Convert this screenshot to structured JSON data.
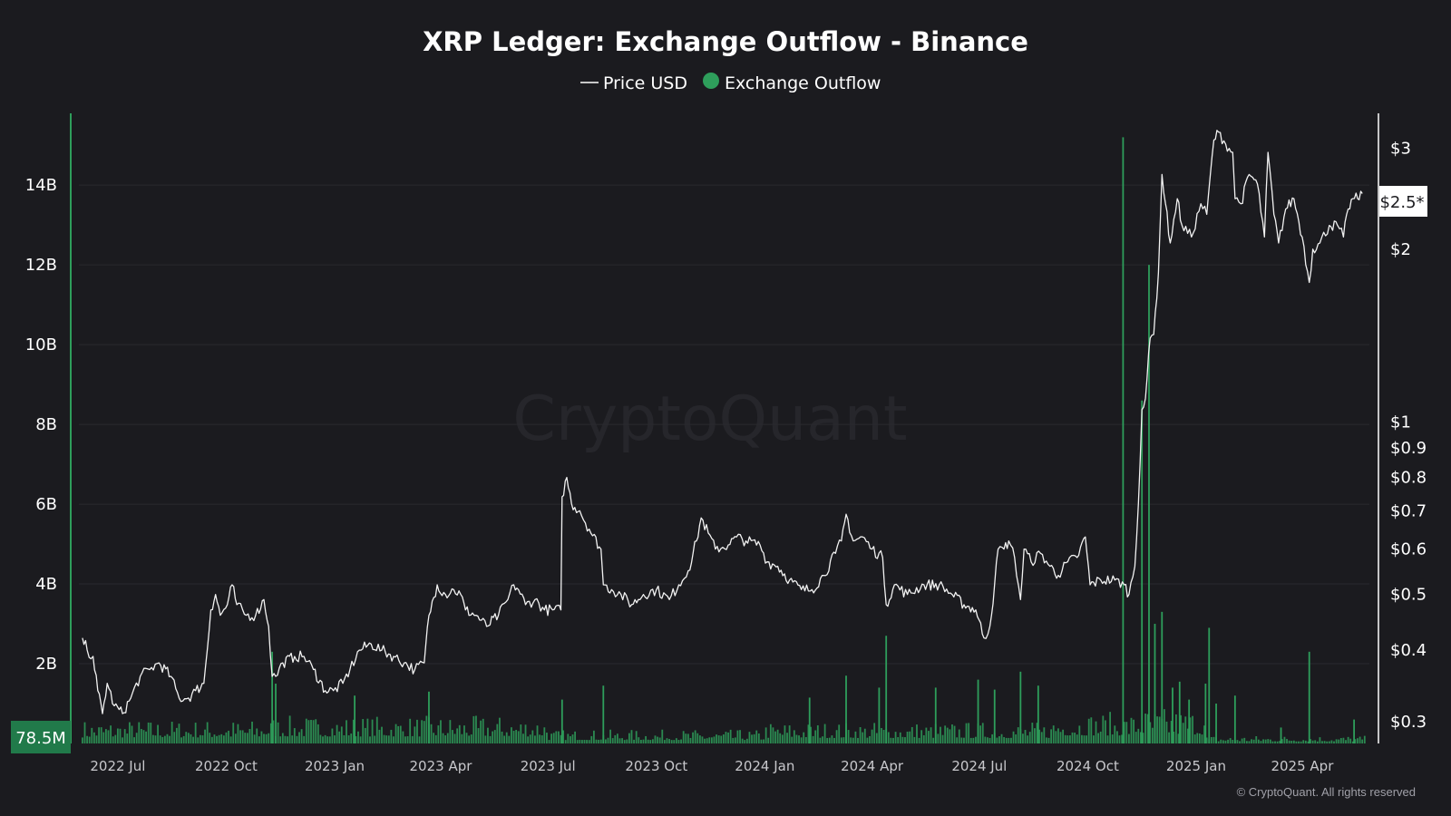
{
  "title": "XRP Ledger: Exchange Outflow - Binance",
  "legend": [
    {
      "label": "Price USD",
      "marker": "line",
      "color": "#ffffff"
    },
    {
      "label": "Exchange Outflow",
      "marker": "dot",
      "color": "#2e9e5b"
    }
  ],
  "watermark": "CryptoQuant",
  "copyright": "© CryptoQuant. All rights reserved",
  "colors": {
    "background": "#1b1b1f",
    "outflow": "#2e9e5b",
    "price": "#ffffff",
    "grid": "#2a2a2f",
    "badge_bg": "#217a4a"
  },
  "chart_data": {
    "type": "bar",
    "x_range": [
      "2022-05-29",
      "2025-05-28"
    ],
    "x_ticks": [
      {
        "date": "2022-07-01",
        "label": "2022 Jul"
      },
      {
        "date": "2022-10-01",
        "label": "2022 Oct"
      },
      {
        "date": "2023-01-01",
        "label": "2023 Jan"
      },
      {
        "date": "2023-04-01",
        "label": "2023 Apr"
      },
      {
        "date": "2023-07-01",
        "label": "2023 Jul"
      },
      {
        "date": "2023-10-01",
        "label": "2023 Oct"
      },
      {
        "date": "2024-01-01",
        "label": "2024 Jan"
      },
      {
        "date": "2024-04-01",
        "label": "2024 Apr"
      },
      {
        "date": "2024-07-01",
        "label": "2024 Jul"
      },
      {
        "date": "2024-10-01",
        "label": "2024 Oct"
      },
      {
        "date": "2025-01-01",
        "label": "2025 Jan"
      },
      {
        "date": "2025-04-01",
        "label": "2025 Apr"
      }
    ],
    "left_axis": {
      "series": "Exchange Outflow",
      "scale": "linear",
      "range": [
        0,
        15800000000
      ],
      "ticks": [
        {
          "value": 2000000000,
          "label": "2B"
        },
        {
          "value": 4000000000,
          "label": "4B"
        },
        {
          "value": 6000000000,
          "label": "6B"
        },
        {
          "value": 8000000000,
          "label": "8B"
        },
        {
          "value": 10000000000,
          "label": "10B"
        },
        {
          "value": 12000000000,
          "label": "12B"
        },
        {
          "value": 14000000000,
          "label": "14B"
        }
      ],
      "current_value_label": "78.5M"
    },
    "right_axis": {
      "series": "Price USD",
      "scale": "log",
      "range": [
        0.275,
        3.45
      ],
      "ticks": [
        {
          "value": 0.3,
          "label": "$0.3"
        },
        {
          "value": 0.4,
          "label": "$0.4"
        },
        {
          "value": 0.5,
          "label": "$0.5"
        },
        {
          "value": 0.6,
          "label": "$0.6"
        },
        {
          "value": 0.7,
          "label": "$0.7"
        },
        {
          "value": 0.8,
          "label": "$0.8"
        },
        {
          "value": 0.9,
          "label": "$0.9"
        },
        {
          "value": 1,
          "label": "$1"
        },
        {
          "value": 2,
          "label": "$2"
        },
        {
          "value": 3,
          "label": "$3"
        }
      ],
      "current_value_label": "$2.5*"
    },
    "series": [
      {
        "name": "Price USD",
        "type": "line",
        "points": [
          [
            "2022-06-01",
            0.42
          ],
          [
            "2022-06-05",
            0.4
          ],
          [
            "2022-06-10",
            0.39
          ],
          [
            "2022-06-14",
            0.34
          ],
          [
            "2022-06-18",
            0.31
          ],
          [
            "2022-06-22",
            0.35
          ],
          [
            "2022-06-28",
            0.32
          ],
          [
            "2022-07-05",
            0.31
          ],
          [
            "2022-07-12",
            0.33
          ],
          [
            "2022-07-20",
            0.36
          ],
          [
            "2022-07-28",
            0.37
          ],
          [
            "2022-08-05",
            0.38
          ],
          [
            "2022-08-15",
            0.36
          ],
          [
            "2022-08-22",
            0.33
          ],
          [
            "2022-08-30",
            0.33
          ],
          [
            "2022-09-05",
            0.34
          ],
          [
            "2022-09-12",
            0.35
          ],
          [
            "2022-09-18",
            0.47
          ],
          [
            "2022-09-22",
            0.5
          ],
          [
            "2022-09-26",
            0.46
          ],
          [
            "2022-10-02",
            0.48
          ],
          [
            "2022-10-06",
            0.52
          ],
          [
            "2022-10-10",
            0.48
          ],
          [
            "2022-10-18",
            0.46
          ],
          [
            "2022-10-26",
            0.46
          ],
          [
            "2022-11-02",
            0.49
          ],
          [
            "2022-11-06",
            0.44
          ],
          [
            "2022-11-09",
            0.36
          ],
          [
            "2022-11-12",
            0.36
          ],
          [
            "2022-11-18",
            0.38
          ],
          [
            "2022-11-28",
            0.39
          ],
          [
            "2022-12-06",
            0.39
          ],
          [
            "2022-12-14",
            0.37
          ],
          [
            "2022-12-24",
            0.34
          ],
          [
            "2022-12-31",
            0.34
          ],
          [
            "2023-01-08",
            0.35
          ],
          [
            "2023-01-14",
            0.37
          ],
          [
            "2023-01-22",
            0.4
          ],
          [
            "2023-02-01",
            0.41
          ],
          [
            "2023-02-10",
            0.4
          ],
          [
            "2023-02-20",
            0.39
          ],
          [
            "2023-03-01",
            0.38
          ],
          [
            "2023-03-10",
            0.37
          ],
          [
            "2023-03-18",
            0.38
          ],
          [
            "2023-03-22",
            0.46
          ],
          [
            "2023-03-29",
            0.52
          ],
          [
            "2023-04-05",
            0.5
          ],
          [
            "2023-04-12",
            0.51
          ],
          [
            "2023-04-18",
            0.5
          ],
          [
            "2023-04-22",
            0.47
          ],
          [
            "2023-05-01",
            0.46
          ],
          [
            "2023-05-10",
            0.44
          ],
          [
            "2023-05-20",
            0.46
          ],
          [
            "2023-05-28",
            0.49
          ],
          [
            "2023-06-02",
            0.52
          ],
          [
            "2023-06-06",
            0.51
          ],
          [
            "2023-06-12",
            0.48
          ],
          [
            "2023-06-20",
            0.49
          ],
          [
            "2023-06-28",
            0.47
          ],
          [
            "2023-07-05",
            0.47
          ],
          [
            "2023-07-12",
            0.47
          ],
          [
            "2023-07-13",
            0.74
          ],
          [
            "2023-07-17",
            0.8
          ],
          [
            "2023-07-21",
            0.72
          ],
          [
            "2023-07-28",
            0.7
          ],
          [
            "2023-08-05",
            0.65
          ],
          [
            "2023-08-15",
            0.6
          ],
          [
            "2023-08-17",
            0.52
          ],
          [
            "2023-08-24",
            0.51
          ],
          [
            "2023-09-01",
            0.5
          ],
          [
            "2023-09-10",
            0.48
          ],
          [
            "2023-09-20",
            0.5
          ],
          [
            "2023-10-01",
            0.51
          ],
          [
            "2023-10-12",
            0.49
          ],
          [
            "2023-10-20",
            0.52
          ],
          [
            "2023-10-28",
            0.55
          ],
          [
            "2023-11-04",
            0.62
          ],
          [
            "2023-11-08",
            0.68
          ],
          [
            "2023-11-14",
            0.64
          ],
          [
            "2023-11-20",
            0.6
          ],
          [
            "2023-12-01",
            0.61
          ],
          [
            "2023-12-08",
            0.63
          ],
          [
            "2023-12-16",
            0.62
          ],
          [
            "2023-12-28",
            0.61
          ],
          [
            "2024-01-03",
            0.57
          ],
          [
            "2024-01-12",
            0.56
          ],
          [
            "2024-01-22",
            0.53
          ],
          [
            "2024-02-01",
            0.51
          ],
          [
            "2024-02-10",
            0.51
          ],
          [
            "2024-02-20",
            0.54
          ],
          [
            "2024-03-01",
            0.59
          ],
          [
            "2024-03-06",
            0.62
          ],
          [
            "2024-03-10",
            0.69
          ],
          [
            "2024-03-16",
            0.62
          ],
          [
            "2024-03-24",
            0.63
          ],
          [
            "2024-04-01",
            0.6
          ],
          [
            "2024-04-10",
            0.58
          ],
          [
            "2024-04-13",
            0.48
          ],
          [
            "2024-04-20",
            0.52
          ],
          [
            "2024-05-01",
            0.5
          ],
          [
            "2024-05-15",
            0.52
          ],
          [
            "2024-05-28",
            0.52
          ],
          [
            "2024-06-08",
            0.5
          ],
          [
            "2024-06-18",
            0.48
          ],
          [
            "2024-06-28",
            0.47
          ],
          [
            "2024-07-05",
            0.42
          ],
          [
            "2024-07-10",
            0.44
          ],
          [
            "2024-07-14",
            0.52
          ],
          [
            "2024-07-17",
            0.6
          ],
          [
            "2024-07-22",
            0.6
          ],
          [
            "2024-07-26",
            0.62
          ],
          [
            "2024-07-31",
            0.58
          ],
          [
            "2024-08-05",
            0.49
          ],
          [
            "2024-08-08",
            0.6
          ],
          [
            "2024-08-14",
            0.57
          ],
          [
            "2024-08-22",
            0.59
          ],
          [
            "2024-08-30",
            0.56
          ],
          [
            "2024-09-06",
            0.54
          ],
          [
            "2024-09-14",
            0.57
          ],
          [
            "2024-09-22",
            0.58
          ],
          [
            "2024-09-29",
            0.63
          ],
          [
            "2024-10-03",
            0.52
          ],
          [
            "2024-10-12",
            0.53
          ],
          [
            "2024-10-24",
            0.53
          ],
          [
            "2024-11-01",
            0.52
          ],
          [
            "2024-11-05",
            0.5
          ],
          [
            "2024-11-10",
            0.56
          ],
          [
            "2024-11-13",
            0.72
          ],
          [
            "2024-11-16",
            1.05
          ],
          [
            "2024-11-19",
            1.1
          ],
          [
            "2024-11-23",
            1.4
          ],
          [
            "2024-11-26",
            1.42
          ],
          [
            "2024-11-30",
            1.82
          ],
          [
            "2024-12-03",
            2.7
          ],
          [
            "2024-12-06",
            2.4
          ],
          [
            "2024-12-10",
            2.05
          ],
          [
            "2024-12-16",
            2.45
          ],
          [
            "2024-12-20",
            2.2
          ],
          [
            "2024-12-28",
            2.1
          ],
          [
            "2025-01-05",
            2.4
          ],
          [
            "2025-01-10",
            2.3
          ],
          [
            "2025-01-16",
            3.1
          ],
          [
            "2025-01-20",
            3.2
          ],
          [
            "2025-01-26",
            3.05
          ],
          [
            "2025-02-01",
            2.95
          ],
          [
            "2025-02-03",
            2.45
          ],
          [
            "2025-02-08",
            2.4
          ],
          [
            "2025-02-15",
            2.7
          ],
          [
            "2025-02-22",
            2.6
          ],
          [
            "2025-02-28",
            2.1
          ],
          [
            "2025-03-03",
            2.95
          ],
          [
            "2025-03-08",
            2.3
          ],
          [
            "2025-03-12",
            2.05
          ],
          [
            "2025-03-18",
            2.35
          ],
          [
            "2025-03-25",
            2.45
          ],
          [
            "2025-04-01",
            2.1
          ],
          [
            "2025-04-07",
            1.75
          ],
          [
            "2025-04-10",
            2.0
          ],
          [
            "2025-04-16",
            2.05
          ],
          [
            "2025-04-24",
            2.2
          ],
          [
            "2025-05-01",
            2.2
          ],
          [
            "2025-05-06",
            2.1
          ],
          [
            "2025-05-10",
            2.35
          ],
          [
            "2025-05-14",
            2.45
          ],
          [
            "2025-05-18",
            2.45
          ],
          [
            "2025-05-22",
            2.5
          ]
        ]
      },
      {
        "name": "Exchange Outflow",
        "type": "bar",
        "baseline_by_period": [
          {
            "from": "2022-06-01",
            "to": "2022-11-01",
            "typical_max": 600000000
          },
          {
            "from": "2022-11-01",
            "to": "2023-07-01",
            "typical_max": 700000000
          },
          {
            "from": "2023-07-01",
            "to": "2024-01-01",
            "typical_max": 350000000
          },
          {
            "from": "2024-01-01",
            "to": "2024-09-01",
            "typical_max": 550000000
          },
          {
            "from": "2024-09-01",
            "to": "2024-11-10",
            "typical_max": 800000000
          },
          {
            "from": "2024-11-10",
            "to": "2025-01-10",
            "typical_max": 900000000
          },
          {
            "from": "2025-01-10",
            "to": "2025-05-28",
            "typical_max": 200000000
          }
        ],
        "spikes": [
          [
            "2022-11-09",
            2300000000
          ],
          [
            "2022-11-12",
            1500000000
          ],
          [
            "2023-01-18",
            1200000000
          ],
          [
            "2023-03-22",
            1300000000
          ],
          [
            "2023-07-13",
            1100000000
          ],
          [
            "2023-08-17",
            1450000000
          ],
          [
            "2024-02-08",
            1150000000
          ],
          [
            "2024-03-10",
            1700000000
          ],
          [
            "2024-04-07",
            1400000000
          ],
          [
            "2024-04-13",
            2700000000
          ],
          [
            "2024-05-25",
            1400000000
          ],
          [
            "2024-06-30",
            1600000000
          ],
          [
            "2024-07-14",
            1350000000
          ],
          [
            "2024-08-05",
            1800000000
          ],
          [
            "2024-08-20",
            1450000000
          ],
          [
            "2024-10-31",
            15200000000
          ],
          [
            "2024-11-16",
            8600000000
          ],
          [
            "2024-11-22",
            12000000000
          ],
          [
            "2024-11-27",
            3000000000
          ],
          [
            "2024-12-03",
            3300000000
          ],
          [
            "2024-12-12",
            1400000000
          ],
          [
            "2024-12-18",
            1550000000
          ],
          [
            "2024-12-26",
            1100000000
          ],
          [
            "2025-01-09",
            1500000000
          ],
          [
            "2025-01-12",
            2900000000
          ],
          [
            "2025-01-18",
            1000000000
          ],
          [
            "2025-02-03",
            1200000000
          ],
          [
            "2025-03-14",
            400000000
          ],
          [
            "2025-04-07",
            2300000000
          ],
          [
            "2025-05-15",
            600000000
          ]
        ]
      }
    ]
  }
}
